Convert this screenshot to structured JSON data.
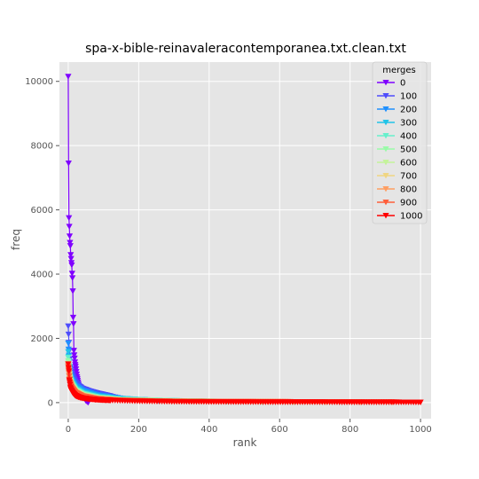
{
  "chart_data": {
    "type": "line",
    "title": "spa-x-bible-reinavaleracontemporanea.txt.clean.txt",
    "xlabel": "rank",
    "ylabel": "freq",
    "xlim": [
      -25,
      1030
    ],
    "ylim": [
      -500,
      10600
    ],
    "xticks": [
      0,
      200,
      400,
      600,
      800,
      1000
    ],
    "yticks": [
      0,
      2000,
      4000,
      6000,
      8000,
      10000
    ],
    "grid": true,
    "marker": "triangle-down",
    "legend": {
      "title": "merges",
      "position": "top-right"
    },
    "series": [
      {
        "name": "0",
        "color": "#7f00ff",
        "n": 57,
        "x": [
          0,
          1,
          2,
          3,
          4,
          5,
          6,
          7,
          8,
          9,
          10,
          11,
          12,
          13,
          14,
          15,
          16,
          17,
          18,
          19,
          20,
          21,
          22,
          23,
          24,
          25,
          30,
          35,
          40,
          45,
          50,
          56
        ],
        "y": [
          10150,
          7450,
          5750,
          5480,
          5180,
          4980,
          4880,
          4600,
          4480,
          4350,
          4280,
          4020,
          3880,
          3470,
          2650,
          2450,
          1620,
          1480,
          1380,
          1260,
          1180,
          1120,
          1040,
          960,
          880,
          800,
          520,
          380,
          260,
          150,
          60,
          10
        ]
      },
      {
        "name": "100",
        "color": "#4e4dfc",
        "n": 155,
        "x": [
          0,
          5,
          10,
          15,
          20,
          30,
          40,
          60,
          80,
          100,
          120,
          140,
          155
        ],
        "y": [
          2380,
          1100,
          900,
          760,
          640,
          520,
          440,
          360,
          300,
          250,
          200,
          150,
          100
        ]
      },
      {
        "name": "200",
        "color": "#1e90ff",
        "n": 255,
        "x": [
          0,
          5,
          10,
          20,
          40,
          80,
          120,
          160,
          200,
          255
        ],
        "y": [
          1850,
          900,
          720,
          520,
          380,
          240,
          170,
          120,
          90,
          60
        ]
      },
      {
        "name": "300",
        "color": "#22c4e8",
        "n": 350,
        "x": [
          0,
          5,
          10,
          20,
          40,
          80,
          150,
          250,
          350
        ],
        "y": [
          1580,
          820,
          640,
          450,
          320,
          200,
          120,
          70,
          40
        ]
      },
      {
        "name": "400",
        "color": "#66f0cc",
        "n": 450,
        "x": [
          0,
          5,
          10,
          20,
          40,
          80,
          150,
          300,
          450
        ],
        "y": [
          1400,
          760,
          580,
          400,
          280,
          170,
          100,
          55,
          30
        ]
      },
      {
        "name": "500",
        "color": "#99fba8",
        "n": 550,
        "x": [
          0,
          5,
          10,
          20,
          40,
          80,
          150,
          300,
          550
        ],
        "y": [
          1300,
          720,
          540,
          370,
          250,
          150,
          90,
          50,
          25
        ]
      },
      {
        "name": "600",
        "color": "#c4f39a",
        "n": 640,
        "x": [
          0,
          5,
          10,
          20,
          40,
          80,
          150,
          300,
          640
        ],
        "y": [
          1220,
          690,
          510,
          350,
          230,
          140,
          80,
          45,
          20
        ]
      },
      {
        "name": "700",
        "color": "#f0d581",
        "n": 730,
        "x": [
          0,
          5,
          10,
          20,
          40,
          80,
          150,
          300,
          730
        ],
        "y": [
          1180,
          660,
          490,
          330,
          220,
          130,
          75,
          40,
          18
        ]
      },
      {
        "name": "800",
        "color": "#ff9e62",
        "n": 830,
        "x": [
          0,
          5,
          10,
          20,
          40,
          80,
          150,
          300,
          830
        ],
        "y": [
          1150,
          640,
          470,
          320,
          210,
          125,
          70,
          38,
          16
        ]
      },
      {
        "name": "900",
        "color": "#ff5e3a",
        "n": 920,
        "x": [
          0,
          5,
          10,
          20,
          40,
          80,
          150,
          300,
          920
        ],
        "y": [
          1120,
          620,
          460,
          310,
          200,
          120,
          68,
          36,
          15
        ]
      },
      {
        "name": "1000",
        "color": "#ff0000",
        "n": 1000,
        "x": [
          0,
          1,
          2,
          3,
          4,
          5,
          6,
          7,
          8,
          10,
          12,
          15,
          20,
          30,
          40,
          60,
          80,
          100,
          150,
          200,
          300,
          500,
          1000
        ],
        "y": [
          1200,
          1080,
          980,
          700,
          640,
          560,
          480,
          440,
          400,
          360,
          320,
          280,
          220,
          170,
          140,
          110,
          90,
          78,
          60,
          45,
          30,
          18,
          10
        ]
      }
    ]
  }
}
